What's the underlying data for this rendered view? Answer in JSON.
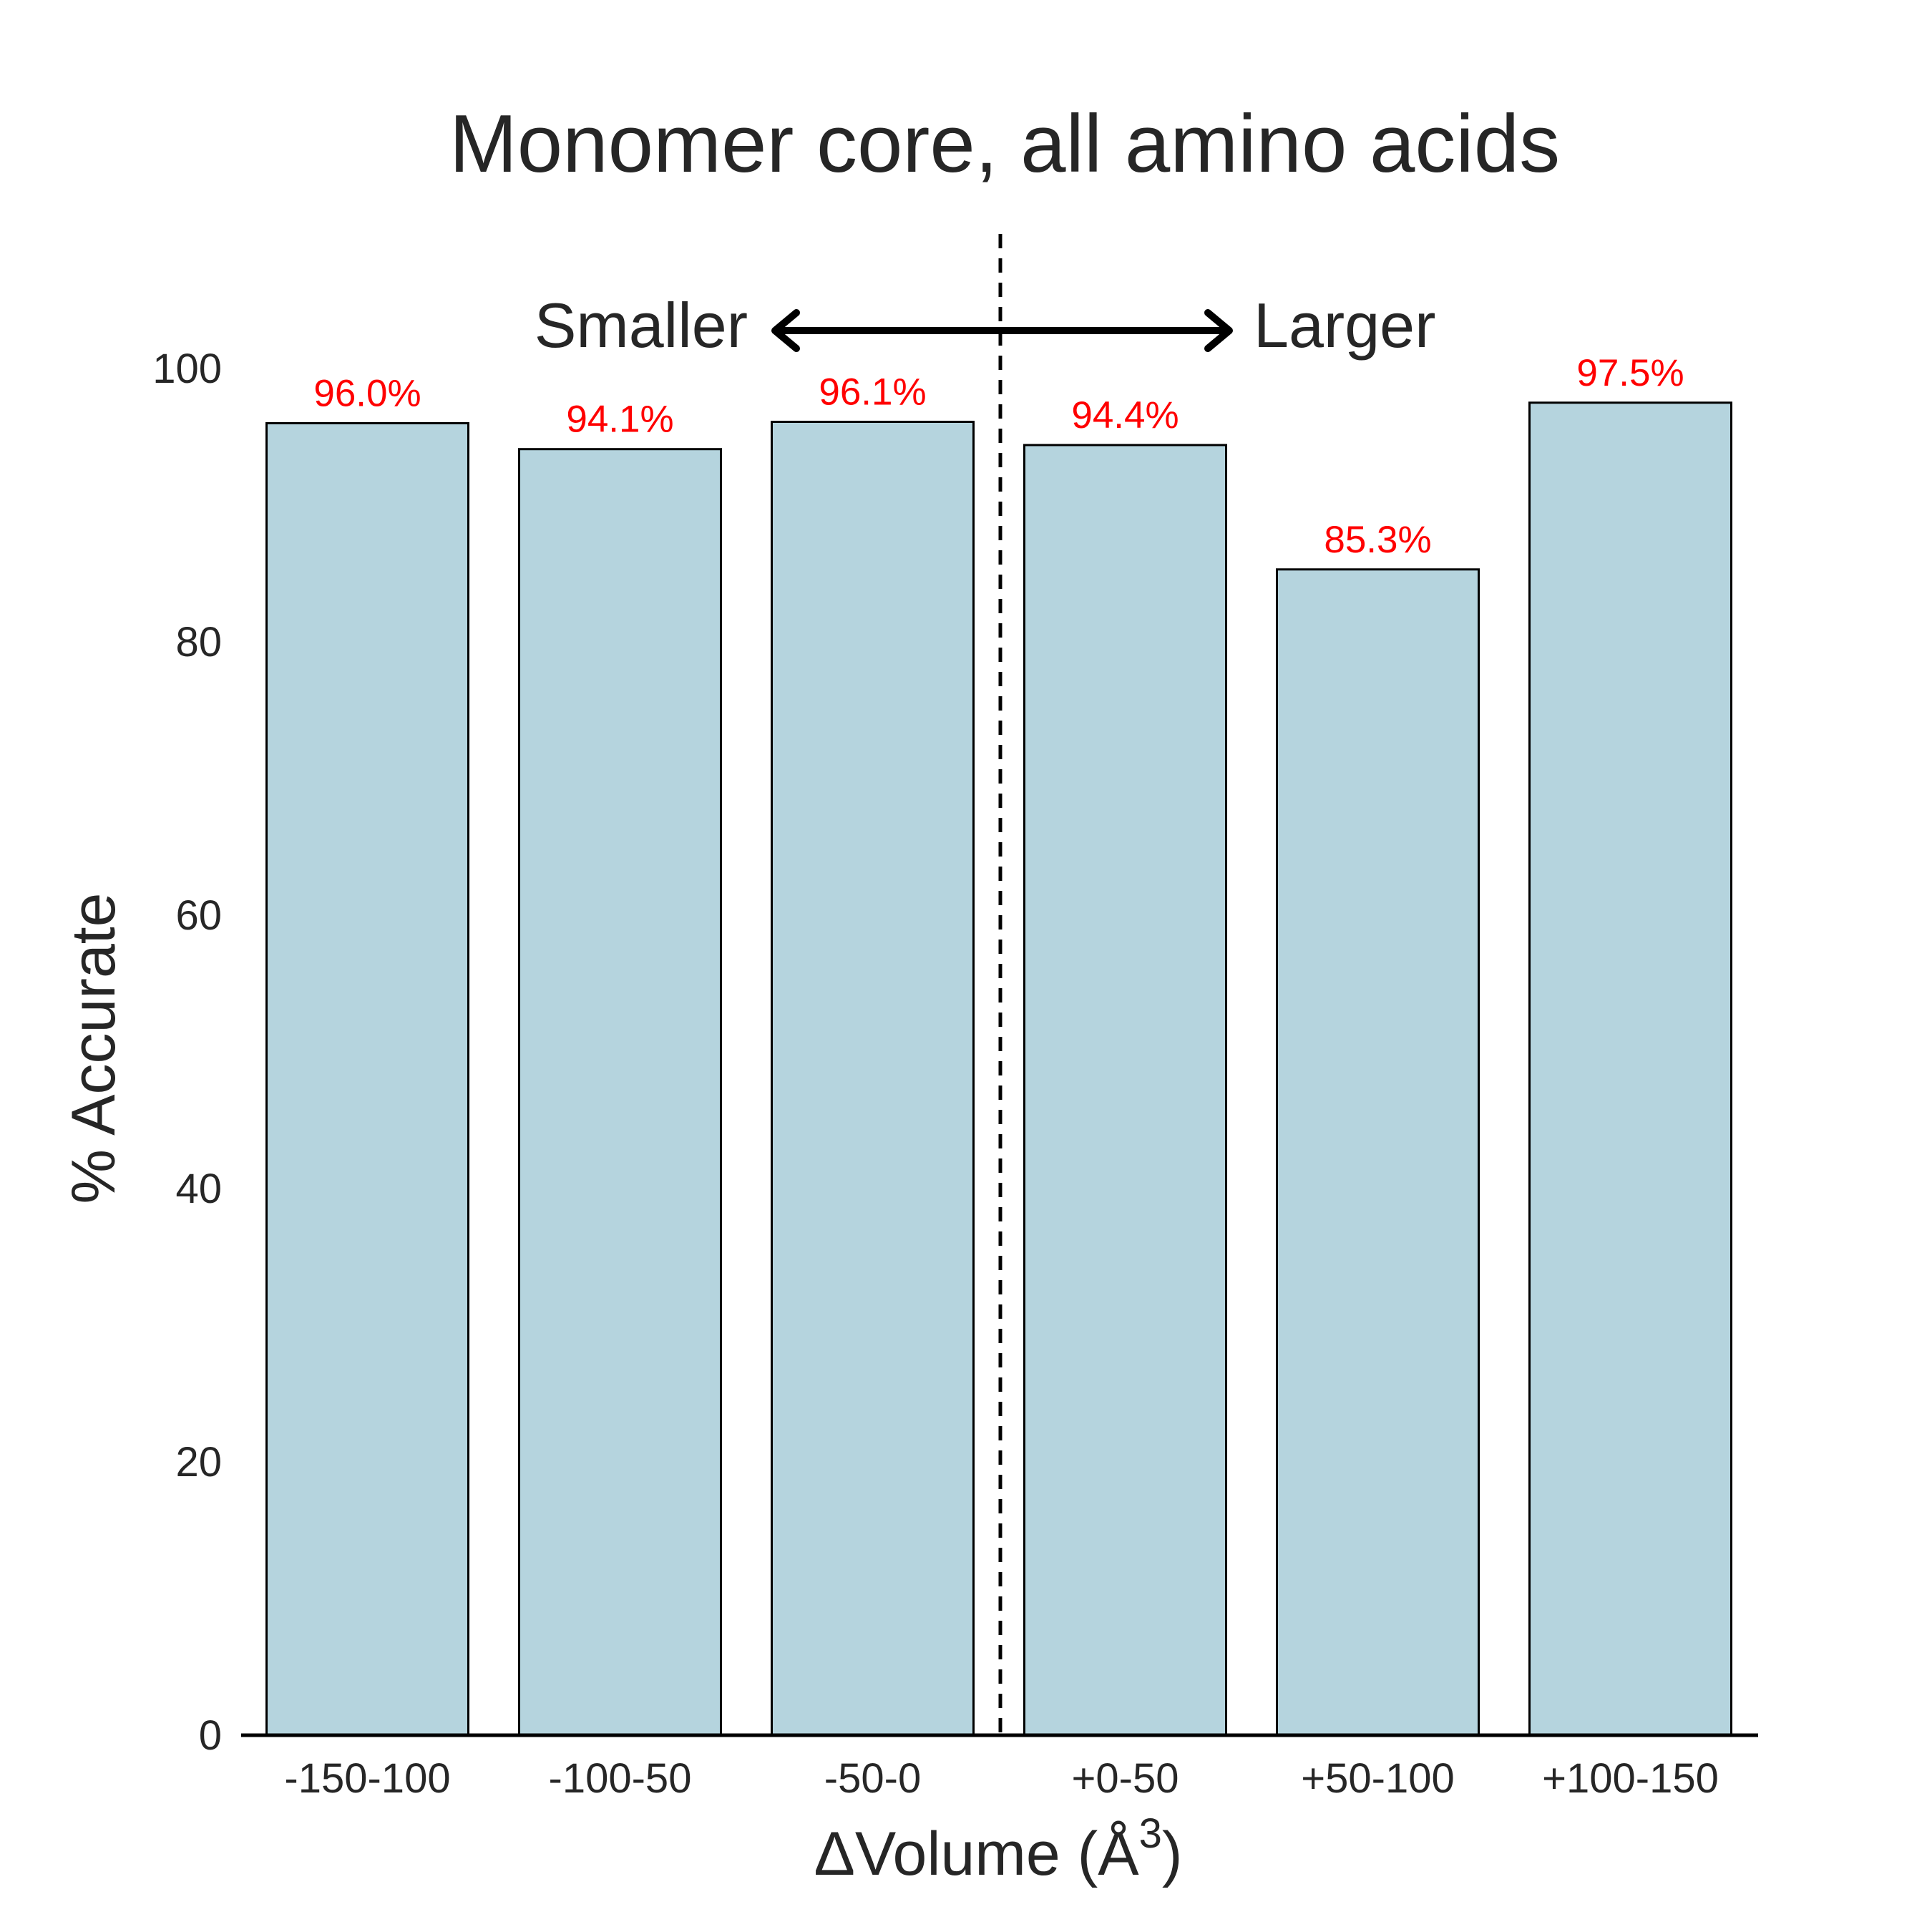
{
  "chart_data": {
    "type": "bar",
    "title": "Monomer core, all amino acids",
    "xlabel_prefix": "ΔVolume (Å",
    "xlabel_superscript": "3",
    "xlabel_suffix": ")",
    "ylabel": "% Accurate",
    "categories": [
      "-150-100",
      "-100-50",
      "-50-0",
      "+0-50",
      "+50-100",
      "+100-150"
    ],
    "values": [
      96.0,
      94.1,
      96.1,
      94.4,
      85.3,
      97.5
    ],
    "value_labels": [
      "96.0%",
      "94.1%",
      "96.1%",
      "94.4%",
      "85.3%",
      "97.5%"
    ],
    "ylim": [
      0,
      110
    ],
    "yticks": [
      0,
      20,
      40,
      60,
      80,
      100
    ],
    "grid": false,
    "bar_color": "#b5d4de",
    "bar_edge_color": "#000000",
    "value_label_color": "#ff0000",
    "annotations": {
      "smaller_label": "Smaller",
      "larger_label": "Larger",
      "divider": "dashed vertical line between -50-0 and +0-50"
    }
  }
}
